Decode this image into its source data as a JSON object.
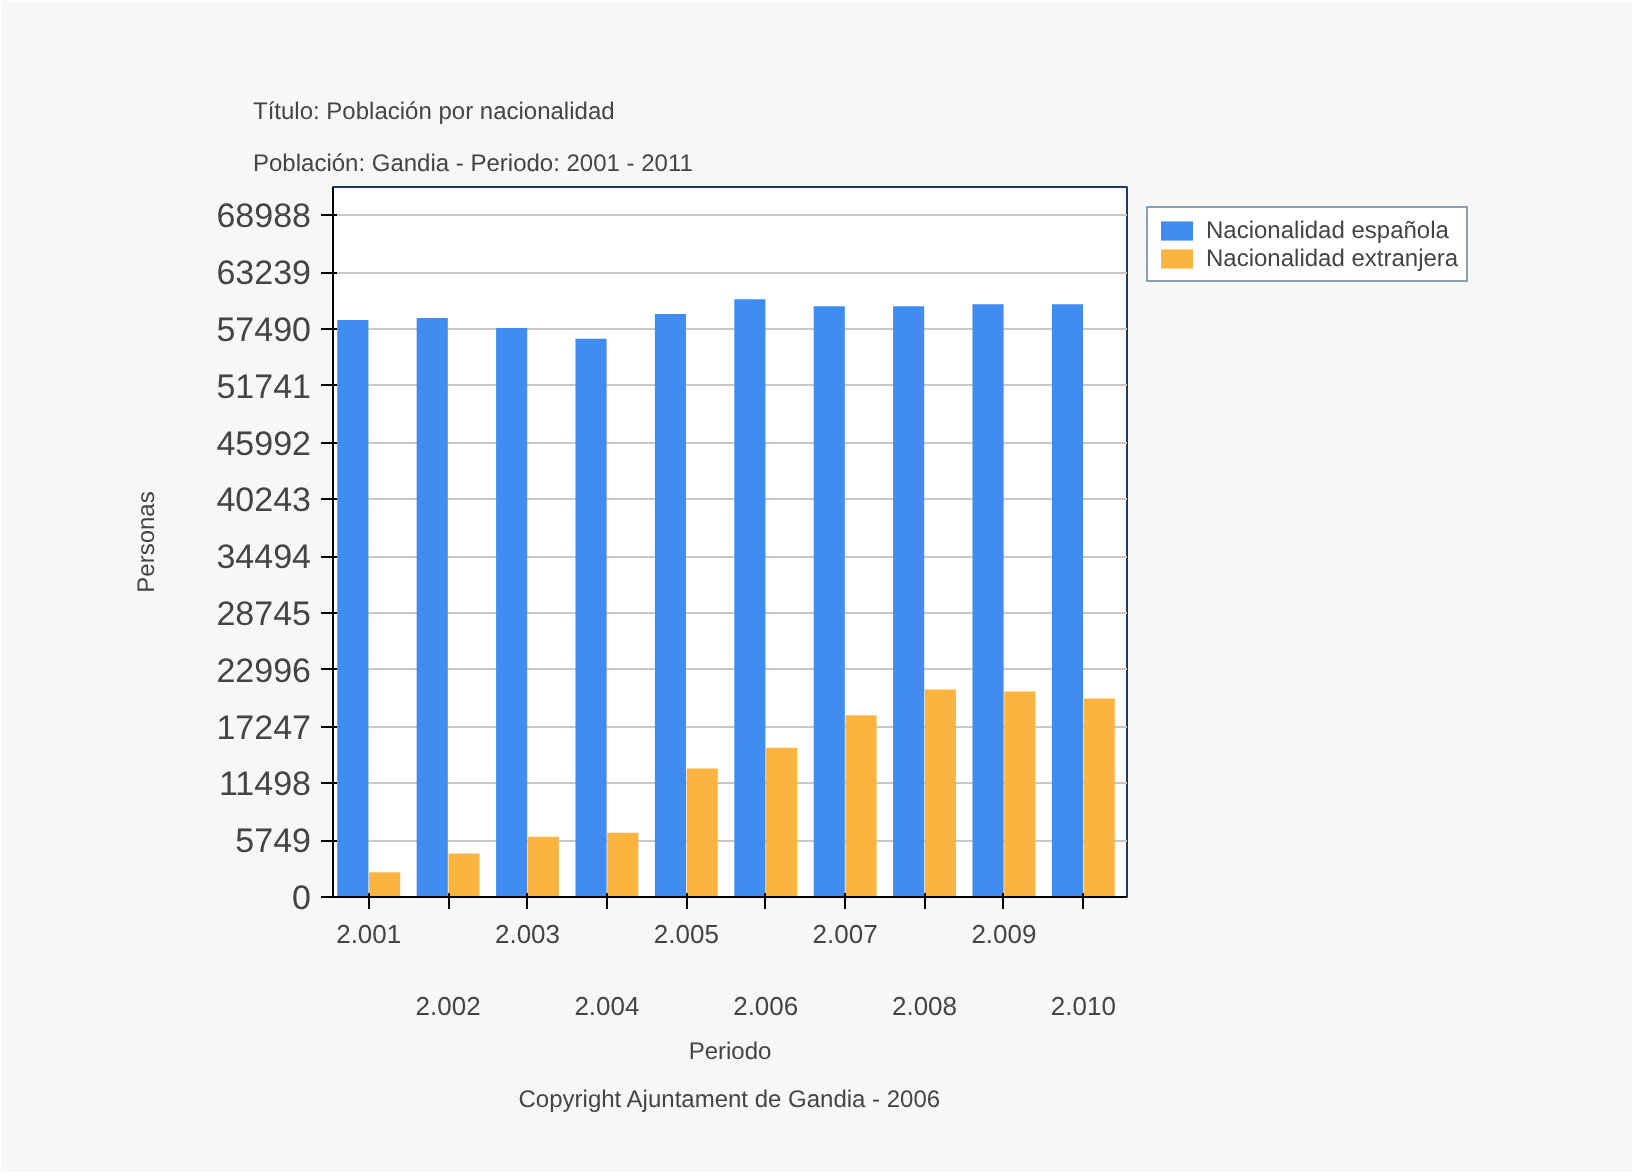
{
  "chart_data": {
    "type": "bar",
    "title": "Título: Población por nacionalidad",
    "subtitle": "Población: Gandia - Periodo: 2001 - 2011",
    "xlabel": "Periodo",
    "ylabel": "Personas",
    "annotations": [
      "Copyright Ajuntament de Gandia - 2006"
    ],
    "categories": [
      "2.001",
      "2.002",
      "2.003",
      "2.004",
      "2.005",
      "2.006",
      "2.007",
      "2.008",
      "2.009",
      "2.010"
    ],
    "series": [
      {
        "name": "Nacionalidad española",
        "color": "#418cf0",
        "values": [
          58400,
          58600,
          57600,
          56500,
          59000,
          60500,
          59800,
          59800,
          60000,
          60000
        ]
      },
      {
        "name": "Nacionalidad extranjera",
        "color": "#fcb441",
        "values": [
          2500,
          4400,
          6100,
          6500,
          13000,
          15100,
          18400,
          21000,
          20800,
          20100
        ]
      }
    ],
    "ylim": [
      0,
      71862
    ],
    "yticks": [
      0,
      5749,
      11498,
      17247,
      22996,
      28745,
      34494,
      40243,
      45992,
      51741,
      57490,
      63239,
      68988
    ],
    "grid": "y",
    "legend": "right"
  }
}
